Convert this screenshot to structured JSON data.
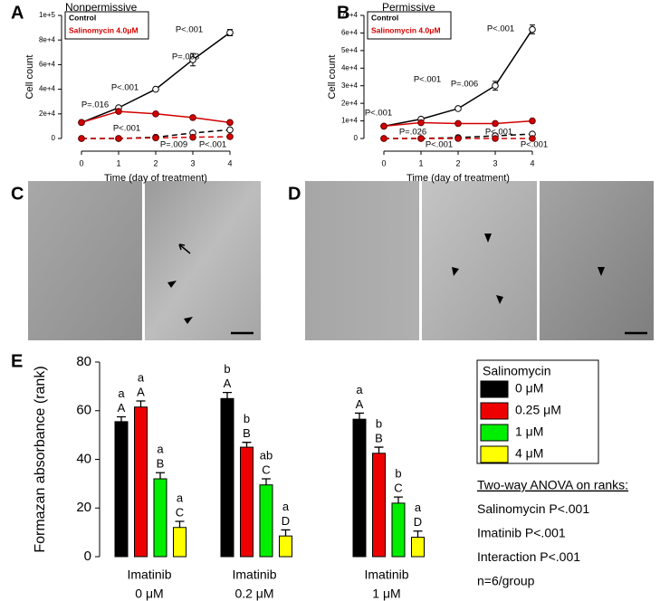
{
  "chart_data": [
    {
      "type": "line",
      "panel": "A",
      "title": "Nonpermissive",
      "xlabel": "Time (day of treatment)",
      "ylabel": "Cell count",
      "x": [
        0,
        1,
        2,
        3,
        4
      ],
      "xlim": [
        0,
        4
      ],
      "xticks": [
        0,
        1,
        2,
        3,
        4
      ],
      "ylim": [
        0,
        100000
      ],
      "yticks": [
        0,
        {
          "value": 20000,
          "label": "2e+4"
        },
        {
          "value": 40000,
          "label": "4e+4"
        },
        {
          "value": 60000,
          "label": "6e+4"
        },
        {
          "value": 80000,
          "label": "8e+4"
        },
        {
          "value": 100000,
          "label": "1e+5"
        }
      ],
      "series": [
        {
          "name": "Control",
          "color": "#000000",
          "marker": "open",
          "values": [
            13000,
            25000,
            40000,
            64000,
            86000
          ],
          "errors": [
            0,
            0,
            0,
            5000,
            2500
          ]
        },
        {
          "name": "Salinomycin 4.0μM",
          "color": "#d40000",
          "marker": "filled",
          "values": [
            13000,
            22000,
            20000,
            17000,
            13000
          ]
        },
        {
          "color": "#000000",
          "marker": "open",
          "dash": true,
          "values": [
            0,
            0,
            1000,
            4500,
            7000
          ]
        },
        {
          "color": "#d40000",
          "marker": "filled",
          "dash": true,
          "values": [
            0,
            0,
            500,
            1000,
            1500
          ]
        }
      ],
      "annotations": [
        "P=.016",
        "P<.001",
        "P=.003",
        "P<.001",
        "P<.001",
        "P=.009",
        "P<.001"
      ]
    },
    {
      "type": "line",
      "panel": "B",
      "title": "Permissive",
      "xlabel": "Time (day of treatment)",
      "ylabel": "Cell count",
      "x": [
        0,
        1,
        2,
        3,
        4
      ],
      "xlim": [
        0,
        4
      ],
      "xticks": [
        0,
        1,
        2,
        3,
        4
      ],
      "ylim": [
        0,
        70000
      ],
      "yticks": [
        0,
        {
          "value": 10000,
          "label": "1e+4"
        },
        {
          "value": 20000,
          "label": "2e+4"
        },
        {
          "value": 30000,
          "label": "3e+4"
        },
        {
          "value": 40000,
          "label": "4e+4"
        },
        {
          "value": 50000,
          "label": "5e+4"
        },
        {
          "value": 60000,
          "label": "6e+4"
        },
        {
          "value": 70000,
          "label": "7e+4"
        }
      ],
      "series": [
        {
          "name": "Control",
          "color": "#000000",
          "marker": "open",
          "values": [
            7000,
            11000,
            17000,
            30000,
            62000
          ],
          "errors": [
            0,
            0,
            0,
            2500,
            2500
          ]
        },
        {
          "name": "Salinomycin 4.0μM",
          "color": "#d40000",
          "marker": "filled",
          "values": [
            7000,
            9000,
            8500,
            8500,
            10000
          ]
        },
        {
          "color": "#000000",
          "marker": "open",
          "dash": true,
          "values": [
            0,
            0,
            500,
            1500,
            2500
          ]
        },
        {
          "color": "#d40000",
          "marker": "filled",
          "dash": true,
          "values": [
            0,
            0,
            0,
            0,
            0
          ]
        }
      ],
      "annotations": [
        "P<.001",
        "P<.001",
        "P=.006",
        "P<.001",
        "P=.026",
        "P<.001",
        "P<.001",
        "P<.001"
      ]
    },
    {
      "type": "bar",
      "panel": "E",
      "ylabel": "Formazan absorbance (rank)",
      "categories": [
        [
          "Imatinib",
          "0 μM"
        ],
        [
          "Imatinib",
          "0.2 μM"
        ],
        [
          "Imatinib",
          "1 μM"
        ]
      ],
      "ylim": [
        0,
        80
      ],
      "yticks": [
        0,
        20,
        40,
        60,
        80
      ],
      "legend_title": "Salinomycin",
      "series": [
        {
          "name": "0 μM",
          "color": "#000000",
          "values": [
            55.5,
            65,
            56.5
          ],
          "errors": [
            2,
            2.5,
            2.5
          ],
          "letters_lower": [
            "a",
            "b",
            "a"
          ],
          "letters_upper": [
            "A",
            "A",
            "A"
          ]
        },
        {
          "name": "0.25 μM",
          "color": "#ee0000",
          "values": [
            61.5,
            45,
            42.5
          ],
          "errors": [
            2.5,
            2,
            2.5
          ],
          "letters_lower": [
            "a",
            "b",
            "b"
          ],
          "letters_upper": [
            "A",
            "B",
            "B"
          ]
        },
        {
          "name": "1 μM",
          "color": "#00ee00",
          "values": [
            32,
            29.5,
            22
          ],
          "errors": [
            2.5,
            2.5,
            2.5
          ],
          "letters_lower": [
            "a",
            "ab",
            "b"
          ],
          "letters_upper": [
            "B",
            "C",
            "C"
          ]
        },
        {
          "name": "4 μM",
          "color": "#ffff00",
          "values": [
            12,
            8.5,
            8
          ],
          "errors": [
            2.5,
            2.5,
            2.5
          ],
          "letters_lower": [
            "a",
            "a",
            "a"
          ],
          "letters_upper": [
            "C",
            "D",
            "D"
          ]
        }
      ],
      "stats": [
        "Two-way ANOVA on ranks:",
        "Salinomycin P<.001",
        "Imatinib P<.001",
        "Interaction P<.001",
        "n=6/group"
      ]
    }
  ],
  "micrograph_panels": [
    "C",
    "D"
  ]
}
